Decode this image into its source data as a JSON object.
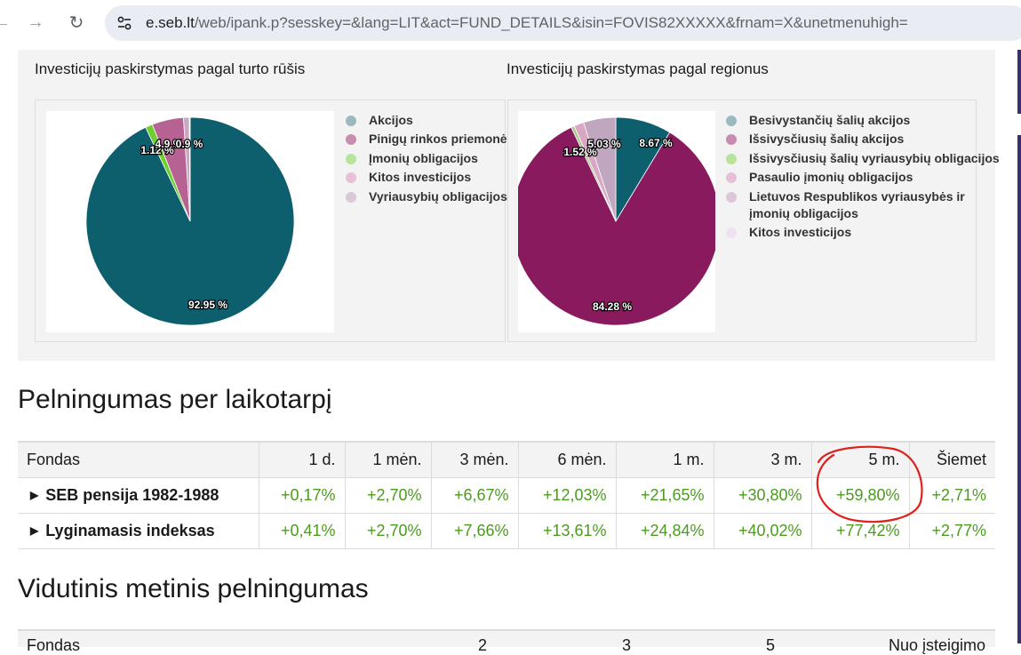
{
  "browser": {
    "url_host": "e.seb.lt",
    "url_rest": "/web/ipank.p?sesskey=&lang=LIT&act=FUND_DETAILS&isin=FOVIS82XXXXX&frnam=X&unetmenuhigh="
  },
  "charts": {
    "asset_title": "Investicijų paskirstymas pagal turto rūšis",
    "region_title": "Investicijų paskirstymas pagal regionus",
    "asset_legend": [
      {
        "label": "Akcijos",
        "color": "#9cb9c0"
      },
      {
        "label": "Pinigų rinkos priemonės",
        "color": "#c98bb0"
      },
      {
        "label": "Įmonių obligacijos",
        "color": "#b8e39a"
      },
      {
        "label": "Kitos investicijos",
        "color": "#e7bfd6"
      },
      {
        "label": "Vyriausybių obligacijos",
        "color": "#dcc7d8"
      }
    ],
    "region_legend": [
      {
        "label": "Besivystančių šalių akcijos",
        "color": "#9cb9c0"
      },
      {
        "label": "Išsivysčiusių šalių akcijos",
        "color": "#c98bb0"
      },
      {
        "label": "Išsivysčiusių šalių vyriausybių obligacijos",
        "color": "#b8e39a"
      },
      {
        "label": "Pasaulio įmonių obligacijos",
        "color": "#e7bfd6"
      },
      {
        "label": "Lietuvos Respublikos vyriausybės ir",
        "label2": "įmonių obligacijos",
        "color": "#dcc7d8"
      },
      {
        "label": "Kitos investicijos",
        "color": "#ece3ee"
      }
    ]
  },
  "chart_data": [
    {
      "type": "pie",
      "title": "Investicijų paskirstymas pagal turto rūšis",
      "slices": [
        {
          "label": "Akcijos",
          "value": 92.95,
          "color": "#0d5f6e",
          "text": "92.95 %"
        },
        {
          "label": "Įmonių obligacijos",
          "value": 1.12,
          "color": "#6ecf2e",
          "text": "1.12 %"
        },
        {
          "label": "Pinigų rinkos priemonės",
          "value": 4.9,
          "color": "#b66292",
          "text": "4.9 %"
        },
        {
          "label": "Vyriausybių obligacijos",
          "value": 0.9,
          "color": "#c7aac0",
          "text": "0.9 %"
        },
        {
          "label": "Kitos investicijos",
          "value": 0.13,
          "color": "#e7bfd6",
          "text": "0.13 %"
        }
      ]
    },
    {
      "type": "pie",
      "title": "Investicijų paskirstymas pagal regionus",
      "slices": [
        {
          "label": "Besivystančių šalių akcijos",
          "value": 8.67,
          "color": "#0d5f6e",
          "text": "8.67 %"
        },
        {
          "label": "Išsivysčiusių šalių akcijos",
          "value": 84.28,
          "color": "#8a1a5e",
          "text": "84.28 %"
        },
        {
          "label": "Išsivysčiusių šalių vyriausybių obligacijos",
          "value": 0.5,
          "color": "#a9c98f",
          "text": "0.5 %"
        },
        {
          "label": "Pasaulio įmonių obligacijos",
          "value": 1.52,
          "color": "#d9a6c4",
          "text": "1.52 %"
        },
        {
          "label": "Lietuvos Respublikos vyriausybės ir įmonių obligacijos",
          "value": 5.03,
          "color": "#c0a6be",
          "text": "5.03 %"
        }
      ]
    }
  ],
  "returns": {
    "heading": "Pelningumas per laikotarpį",
    "columns": [
      "Fondas",
      "1 d.",
      "1 mėn.",
      "3 mėn.",
      "6 mėn.",
      "1 m.",
      "3 m.",
      "5 m.",
      "Šiemet"
    ],
    "rows": [
      {
        "name": "SEB pensija 1982-1988",
        "values": [
          "+0,17%",
          "+2,70%",
          "+6,67%",
          "+12,03%",
          "+21,65%",
          "+30,80%",
          "+59,80%",
          "+2,71%"
        ]
      },
      {
        "name": "Lyginamasis indeksas",
        "values": [
          "+0,41%",
          "+2,70%",
          "+7,66%",
          "+13,61%",
          "+24,84%",
          "+40,02%",
          "+77,42%",
          "+2,77%"
        ]
      }
    ]
  },
  "average": {
    "heading": "Vidutinis metinis pelningumas",
    "columns": [
      "Fondas",
      "2",
      "3",
      "5",
      "Nuo įsteigimo"
    ]
  }
}
